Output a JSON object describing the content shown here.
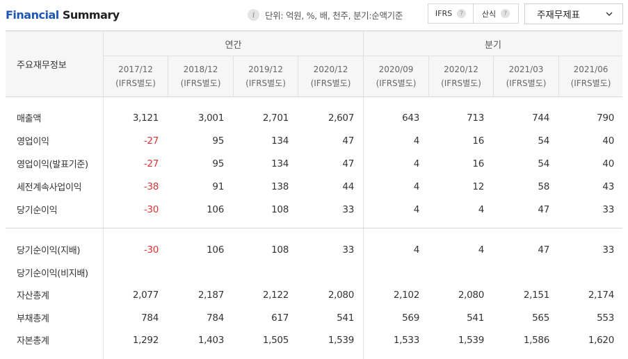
{
  "header": {
    "title_part1": "Financial",
    "title_part2": "Summary",
    "unit_text": "단위: 억원, %, 배, 천주, 분기:순액기준",
    "toggle_ifrs": "IFRS",
    "toggle_calc": "산식",
    "help_glyph": "?",
    "info_glyph": "i",
    "statement_select": "주재무제표"
  },
  "table": {
    "row_header": "주요재무정보",
    "groups": {
      "annual": "연간",
      "quarter": "분기"
    },
    "columns": [
      {
        "date": "2017/12",
        "basis": "(IFRS별도)"
      },
      {
        "date": "2018/12",
        "basis": "(IFRS별도)"
      },
      {
        "date": "2019/12",
        "basis": "(IFRS별도)"
      },
      {
        "date": "2020/12",
        "basis": "(IFRS별도)"
      },
      {
        "date": "2020/09",
        "basis": "(IFRS별도)"
      },
      {
        "date": "2020/12",
        "basis": "(IFRS별도)"
      },
      {
        "date": "2021/03",
        "basis": "(IFRS별도)"
      },
      {
        "date": "2021/06",
        "basis": "(IFRS별도)"
      }
    ],
    "rows": [
      {
        "label": "매출액",
        "values": [
          "3,121",
          "3,001",
          "2,701",
          "2,607",
          "643",
          "713",
          "744",
          "790"
        ]
      },
      {
        "label": "영업이익",
        "values": [
          "-27",
          "95",
          "134",
          "47",
          "4",
          "16",
          "54",
          "40"
        ]
      },
      {
        "label": "영업이익(발표기준)",
        "values": [
          "-27",
          "95",
          "134",
          "47",
          "4",
          "16",
          "54",
          "40"
        ]
      },
      {
        "label": "세전계속사업이익",
        "values": [
          "-38",
          "91",
          "138",
          "44",
          "4",
          "12",
          "58",
          "43"
        ]
      },
      {
        "label": "당기순이익",
        "values": [
          "-30",
          "106",
          "108",
          "33",
          "4",
          "4",
          "47",
          "33"
        ]
      },
      {
        "label": "당기순이익(지배)",
        "values": [
          "-30",
          "106",
          "108",
          "33",
          "4",
          "4",
          "47",
          "33"
        ]
      },
      {
        "label": "당기순이익(비지배)",
        "values": [
          "",
          "",
          "",
          "",
          "",
          "",
          "",
          ""
        ]
      },
      {
        "label": "자산총계",
        "values": [
          "2,077",
          "2,187",
          "2,122",
          "2,080",
          "2,102",
          "2,080",
          "2,151",
          "2,174"
        ]
      },
      {
        "label": "부채총계",
        "values": [
          "784",
          "784",
          "617",
          "541",
          "569",
          "541",
          "565",
          "553"
        ]
      },
      {
        "label": "자본총계",
        "values": [
          "1,292",
          "1,403",
          "1,505",
          "1,539",
          "1,533",
          "1,539",
          "1,586",
          "1,620"
        ]
      }
    ]
  },
  "colors": {
    "title_blue": "#1e56b5",
    "negative": "#e03232"
  }
}
